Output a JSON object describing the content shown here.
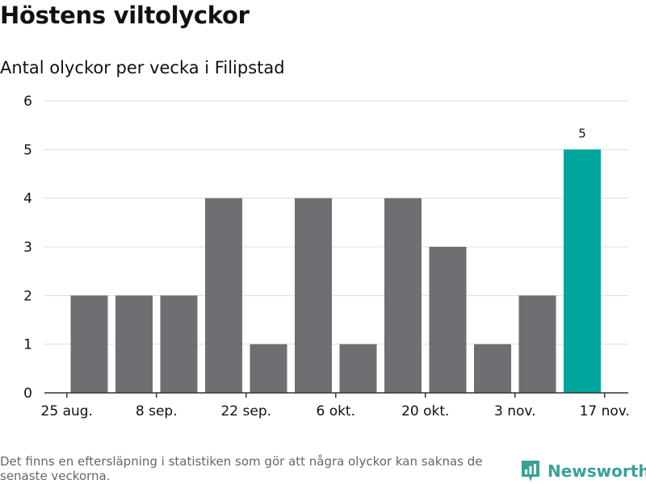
{
  "title": "Höstens viltolyckor",
  "subtitle": "Antal olyckor per vecka i Filipstad",
  "footnote": "Det finns en eftersläpning i statistiken som gör att några olyckor kan saknas de senaste veckorna.",
  "brand": {
    "name": "Newsworthy",
    "color": "#3aa196",
    "icon": "newsworthy-logo-icon"
  },
  "colors": {
    "bar": "#6f6e72",
    "highlight": "#00a69c",
    "grid": "#dddddd",
    "axis": "#333333",
    "text": "#111111"
  },
  "chart_data": {
    "type": "bar",
    "title": "Antal olyckor per vecka i Filipstad",
    "xlabel": "",
    "ylabel": "",
    "ylim": [
      0,
      6
    ],
    "y_ticks": [
      0,
      1,
      2,
      3,
      4,
      5,
      6
    ],
    "grid": true,
    "x_ticks": [
      {
        "label": "25 aug.",
        "position": -0.5
      },
      {
        "label": "8 sep.",
        "position": 1.5
      },
      {
        "label": "22 sep.",
        "position": 3.5
      },
      {
        "label": "6 okt.",
        "position": 5.5
      },
      {
        "label": "20 okt.",
        "position": 7.5
      },
      {
        "label": "3 nov.",
        "position": 9.5
      },
      {
        "label": "17 nov.",
        "position": 11.5
      }
    ],
    "values": [
      2,
      2,
      2,
      4,
      1,
      4,
      1,
      4,
      3,
      1,
      2,
      5
    ],
    "highlight_index": 11,
    "data_labels": [
      {
        "index": 11,
        "text": "5"
      }
    ]
  }
}
